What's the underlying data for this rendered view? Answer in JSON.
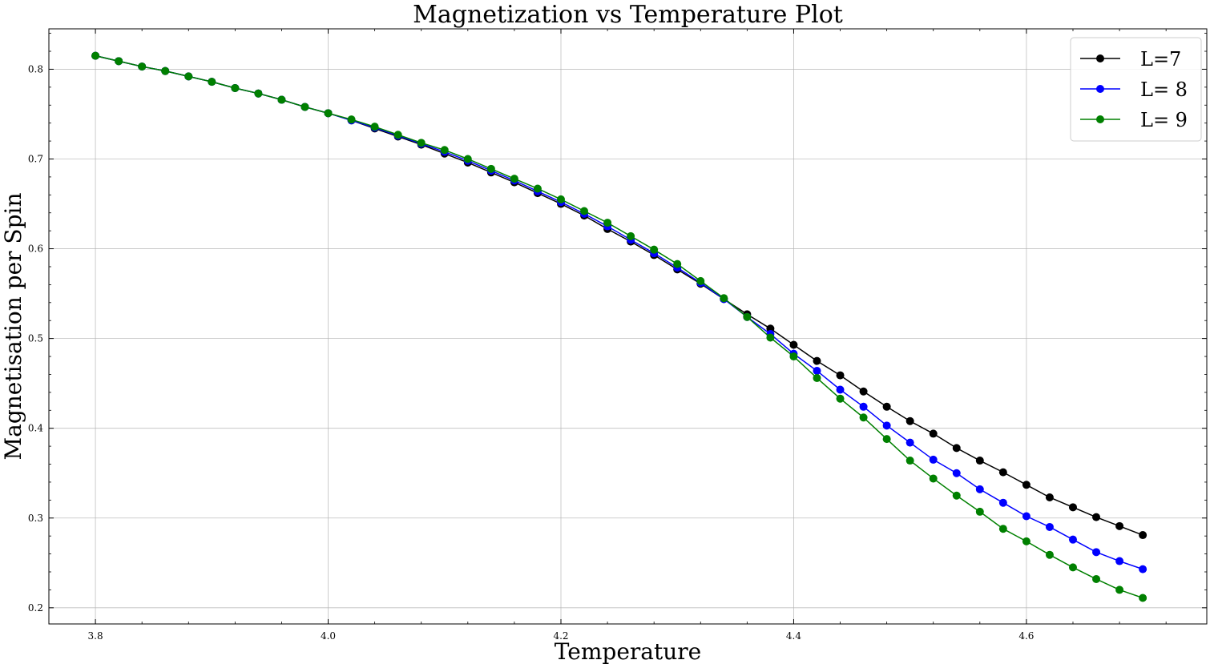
{
  "chart_data": {
    "type": "line",
    "title": "Magnetization vs Temperature Plot",
    "xlabel": "Temperature",
    "ylabel": "Magnetisation per Spin",
    "xlim": [
      3.76,
      4.755
    ],
    "ylim": [
      0.182,
      0.845
    ],
    "xticks": [
      3.8,
      4.0,
      4.2,
      4.4,
      4.6
    ],
    "xtick_labels": [
      "3.8",
      "4.0",
      "4.2",
      "4.4",
      "4.6"
    ],
    "yticks": [
      0.2,
      0.3,
      0.4,
      0.5,
      0.6,
      0.7,
      0.8
    ],
    "ytick_labels": [
      "0.2",
      "0.3",
      "0.4",
      "0.5",
      "0.6",
      "0.7",
      "0.8"
    ],
    "grid": true,
    "legend_position": "top-right",
    "x": [
      3.8,
      3.82,
      3.84,
      3.86,
      3.88,
      3.9,
      3.92,
      3.94,
      3.96,
      3.98,
      4.0,
      4.02,
      4.04,
      4.06,
      4.08,
      4.1,
      4.12,
      4.14,
      4.16,
      4.18,
      4.2,
      4.22,
      4.24,
      4.26,
      4.28,
      4.3,
      4.32,
      4.34,
      4.36,
      4.38,
      4.4,
      4.42,
      4.44,
      4.46,
      4.48,
      4.5,
      4.52,
      4.54,
      4.56,
      4.58,
      4.6,
      4.62,
      4.64,
      4.66,
      4.68,
      4.7
    ],
    "series": [
      {
        "name": "L=7",
        "color": "#000000",
        "values": [
          0.815,
          0.809,
          0.803,
          0.798,
          0.792,
          0.786,
          0.779,
          0.773,
          0.766,
          0.758,
          0.751,
          0.743,
          0.734,
          0.725,
          0.716,
          0.706,
          0.696,
          0.685,
          0.674,
          0.662,
          0.65,
          0.637,
          0.622,
          0.608,
          0.593,
          0.577,
          0.561,
          0.544,
          0.527,
          0.511,
          0.493,
          0.475,
          0.459,
          0.441,
          0.424,
          0.408,
          0.394,
          0.378,
          0.364,
          0.351,
          0.337,
          0.323,
          0.312,
          0.301,
          0.291,
          0.281
        ]
      },
      {
        "name": "L= 8",
        "color": "#0000ff",
        "values": [
          0.815,
          0.809,
          0.803,
          0.798,
          0.792,
          0.786,
          0.779,
          0.773,
          0.766,
          0.758,
          0.751,
          0.743,
          0.735,
          0.726,
          0.717,
          0.708,
          0.698,
          0.687,
          0.676,
          0.664,
          0.652,
          0.639,
          0.625,
          0.61,
          0.595,
          0.579,
          0.562,
          0.544,
          0.524,
          0.505,
          0.483,
          0.464,
          0.443,
          0.424,
          0.403,
          0.384,
          0.365,
          0.35,
          0.332,
          0.317,
          0.302,
          0.29,
          0.276,
          0.262,
          0.252,
          0.243
        ]
      },
      {
        "name": "L= 9",
        "color": "#008000",
        "values": [
          0.815,
          0.809,
          0.803,
          0.798,
          0.792,
          0.786,
          0.779,
          0.773,
          0.766,
          0.758,
          0.751,
          0.744,
          0.736,
          0.727,
          0.718,
          0.71,
          0.7,
          0.689,
          0.678,
          0.667,
          0.655,
          0.642,
          0.629,
          0.614,
          0.599,
          0.583,
          0.564,
          0.545,
          0.524,
          0.501,
          0.48,
          0.456,
          0.433,
          0.412,
          0.388,
          0.364,
          0.344,
          0.325,
          0.307,
          0.288,
          0.274,
          0.259,
          0.245,
          0.232,
          0.22,
          0.211
        ]
      }
    ]
  }
}
